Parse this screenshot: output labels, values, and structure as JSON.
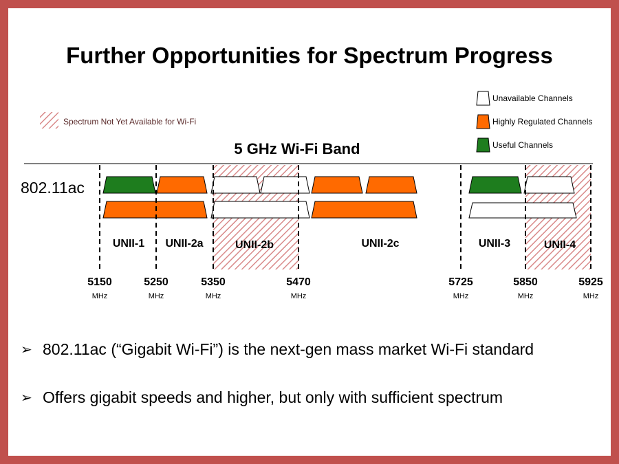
{
  "title": "Further Opportunities for Spectrum Progress",
  "legend": {
    "not_available": "Spectrum Not Yet Available for Wi-Fi",
    "unavailable": "Unavailable Channels",
    "regulated": "Highly Regulated Channels",
    "useful": "Useful Channels"
  },
  "band_title": "5 GHz Wi-Fi Band",
  "row_label": "802.11ac",
  "bands": [
    "UNII-1",
    "UNII-2a",
    "UNII-2b",
    "UNII-2c",
    "UNII-3",
    "UNII-4"
  ],
  "frequencies": [
    "5150",
    "5250",
    "5350",
    "5470",
    "5725",
    "5850",
    "5925"
  ],
  "unit": "MHz",
  "bullets": [
    "802.11ac (“Gigabit Wi-Fi”) is the next-gen mass market Wi-Fi standard",
    "Offers gigabit speeds and higher, but only with sufficient spectrum"
  ],
  "colors": {
    "frame": "#c0504d",
    "useful": "#1e7d1e",
    "regulated": "#ff6a00",
    "hatch": "#d98a8a"
  }
}
